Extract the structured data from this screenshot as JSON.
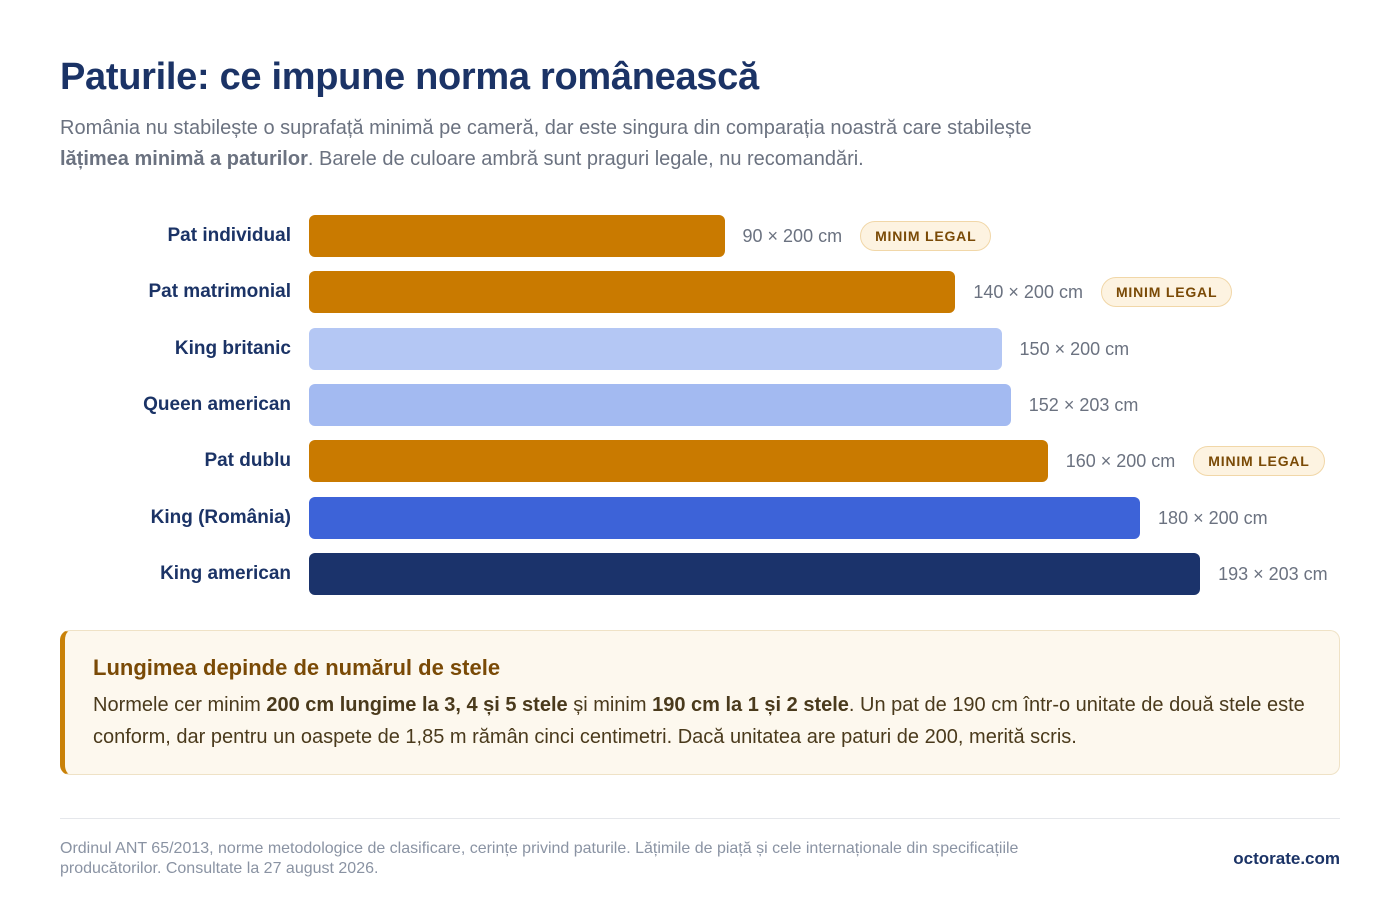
{
  "header": {
    "title": "Paturile: ce impune norma românească",
    "subtitle_part1": "România nu stabilește o suprafață minimă pe cameră, dar este singura din comparația noastră care stabilește ",
    "subtitle_bold": "lățimea minimă a paturilor",
    "subtitle_part2": ". Barele de culoare ambră sunt praguri legale, nu recomandări."
  },
  "chart_data": {
    "type": "bar",
    "orientation": "horizontal",
    "xlim": [
      0,
      200
    ],
    "categories": [
      "Pat individual",
      "Pat matrimonial",
      "King britanic",
      "Queen american",
      "Pat dublu",
      "King (România)",
      "King american"
    ],
    "values": [
      90,
      140,
      150,
      152,
      160,
      180,
      193
    ],
    "data_labels": [
      "90 × 200 cm",
      "140 × 200 cm",
      "150 × 200 cm",
      "152 × 203 cm",
      "160 × 200 cm",
      "180 × 200 cm",
      "193 × 203 cm"
    ],
    "badges": [
      "MINIM LEGAL",
      "MINIM LEGAL",
      "",
      "",
      "MINIM LEGAL",
      "",
      ""
    ],
    "colors": [
      "#c97a00",
      "#c97a00",
      "#b4c7f4",
      "#a3baf1",
      "#c97a00",
      "#3d63d8",
      "#1b336b"
    ]
  },
  "note": {
    "title": "Lungimea depinde de numărul de stele",
    "body_part1": "Normele cer minim ",
    "body_bold1": "200 cm lungime la 3, 4 și 5 stele",
    "body_part2": " și minim ",
    "body_bold2": "190 cm la 1 și 2 stele",
    "body_part3": ". Un pat de 190 cm într-o unitate de două stele este conform, dar pentru un oaspete de 1,85 m rămân cinci centimetri. Dacă unitatea are paturi de 200, merită scris."
  },
  "footer": {
    "source": "Ordinul ANT 65/2013, norme metodologice de clasificare, cerințe privind paturile. Lățimile de piață și cele internaționale din specificațiile producătorilor. Consultate la 27 august 2026.",
    "brand": "octorate.com"
  }
}
